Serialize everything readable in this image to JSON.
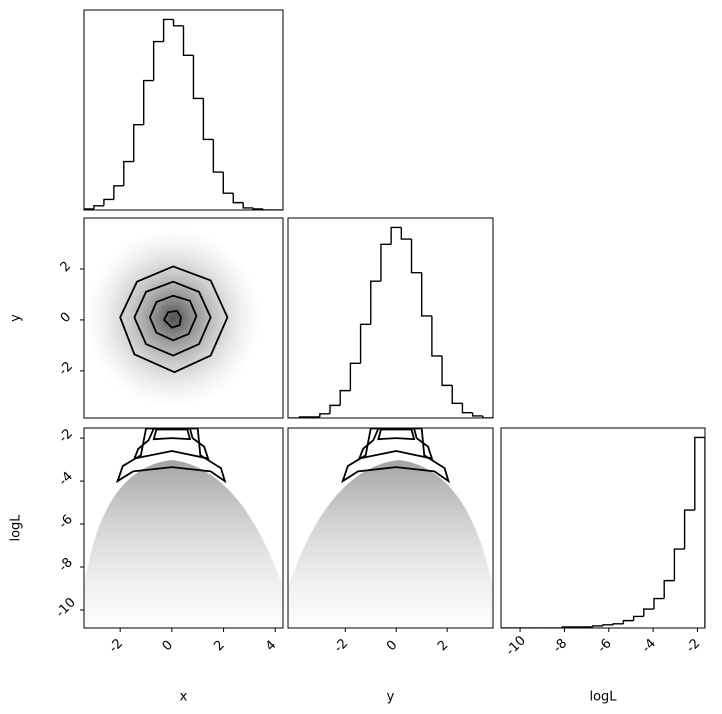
{
  "chart_data": [
    {
      "type": "histogram",
      "xlim": [
        -3.4,
        4.3
      ],
      "ylim": [
        0,
        190
      ],
      "bins": [
        -3.4,
        -3.015,
        -2.63,
        -2.245,
        -1.86,
        -1.475,
        -1.09,
        -0.705,
        -0.32,
        0.065,
        0.45,
        0.835,
        1.22,
        1.605,
        1.99,
        2.375,
        2.76,
        3.145,
        3.53,
        3.915,
        4.3
      ],
      "values": [
        1,
        4,
        10,
        23,
        46,
        81,
        123,
        160,
        181,
        175,
        147,
        106,
        67,
        36,
        16,
        7,
        2,
        1,
        0,
        0
      ],
      "color": "#000000"
    },
    {
      "type": "contour",
      "xlim": [
        -3.4,
        4.3
      ],
      "ylim": [
        -3.85,
        4.0
      ],
      "ylabel": "y",
      "yticks": [
        -2,
        0,
        2
      ],
      "color": "#000000",
      "contours": [
        {
          "x": [
            2.15,
            1.5,
            0.05,
            -1.35,
            -2.0,
            -1.45,
            0.1,
            1.5
          ],
          "y": [
            0.1,
            1.55,
            2.1,
            1.5,
            0.1,
            -1.35,
            -2.05,
            -1.4
          ]
        },
        {
          "x": [
            1.5,
            1.05,
            0.05,
            -1.0,
            -1.45,
            -1.0,
            0.05,
            1.05
          ],
          "y": [
            0.1,
            1.1,
            1.5,
            1.1,
            0.1,
            -0.95,
            -1.4,
            -0.95
          ]
        },
        {
          "x": [
            0.95,
            0.7,
            0.05,
            -0.6,
            -0.85,
            -0.6,
            0.05,
            0.65
          ],
          "y": [
            0.15,
            0.75,
            0.95,
            0.7,
            0.1,
            -0.5,
            -0.8,
            -0.55
          ]
        },
        {
          "x": [
            0.35,
            0.2,
            -0.15,
            -0.3,
            0.0,
            0.3
          ],
          "y": [
            0.1,
            0.35,
            0.3,
            0.0,
            -0.3,
            -0.2
          ]
        }
      ]
    },
    {
      "type": "histogram",
      "xlim": [
        -4.25,
        3.8
      ],
      "ylim": [
        0,
        190
      ],
      "bins": [
        -4.2,
        -3.8,
        -3.4,
        -3.0,
        -2.6,
        -2.2,
        -1.8,
        -1.4,
        -1.0,
        -0.6,
        -0.2,
        0.2,
        0.6,
        1.0,
        1.4,
        1.8,
        2.2,
        2.6,
        3.0,
        3.4,
        3.8
      ],
      "values": [
        0,
        1,
        1,
        4,
        12,
        26,
        52,
        89,
        130,
        165,
        181,
        170,
        138,
        97,
        59,
        31,
        14,
        5,
        2,
        0
      ],
      "color": "#000000"
    },
    {
      "type": "contour",
      "xlim": [
        -3.4,
        4.3
      ],
      "ylim": [
        -10.84,
        -1.53
      ],
      "xlabel": "x",
      "ylabel": "logL",
      "xticks": [
        -2,
        0,
        2,
        4
      ],
      "yticks": [
        -10,
        -8,
        -6,
        -4,
        -2
      ],
      "color": "#000000",
      "contours": [
        {
          "x": [
            -2.1,
            -1.5,
            0,
            1.5,
            2.05,
            1.9,
            1.1,
            1.0,
            -1.0,
            -1.2,
            -1.9
          ],
          "y": [
            -4.0,
            -3.55,
            -3.35,
            -3.55,
            -4.0,
            -3.4,
            -2.8,
            -1.55,
            -1.55,
            -2.8,
            -3.3
          ]
        },
        {
          "x": [
            -1.45,
            0,
            1.4,
            1.25,
            0.8,
            0.7,
            -0.7,
            -0.9,
            -1.3
          ],
          "y": [
            -2.95,
            -2.6,
            -2.95,
            -2.4,
            -2.0,
            -1.55,
            -1.55,
            -2.1,
            -2.5
          ]
        },
        {
          "x": [
            -0.7,
            0,
            0.7,
            0.6,
            -0.6
          ],
          "y": [
            -2.05,
            -2.0,
            -2.05,
            -1.6,
            -1.6
          ]
        }
      ]
    },
    {
      "type": "contour",
      "xlim": [
        -4.25,
        3.8
      ],
      "ylim": [
        -10.84,
        -1.53
      ],
      "xlabel": "y",
      "xticks": [
        -2,
        0,
        2
      ],
      "color": "#000000",
      "contours": [
        {
          "x": [
            -2.1,
            -1.5,
            0,
            1.5,
            2.05,
            1.9,
            1.1,
            1.0,
            -1.0,
            -1.2,
            -1.9
          ],
          "y": [
            -4.0,
            -3.55,
            -3.35,
            -3.55,
            -4.0,
            -3.4,
            -2.8,
            -1.55,
            -1.55,
            -2.8,
            -3.3
          ]
        },
        {
          "x": [
            -1.45,
            0,
            1.4,
            1.25,
            0.8,
            0.7,
            -0.7,
            -0.9,
            -1.3
          ],
          "y": [
            -2.95,
            -2.6,
            -2.95,
            -2.4,
            -2.0,
            -1.55,
            -1.55,
            -2.1,
            -2.5
          ]
        },
        {
          "x": [
            -0.7,
            0,
            0.7,
            0.6,
            -0.6
          ],
          "y": [
            -2.05,
            -2.0,
            -2.05,
            -1.6,
            -1.6
          ]
        }
      ]
    },
    {
      "type": "histogram",
      "xlim": [
        -10.86,
        -1.66
      ],
      "ylim": [
        0,
        190
      ],
      "xlabel": "logL",
      "xticks": [
        -10,
        -8,
        -6,
        -4,
        -2
      ],
      "bins": [
        -10.86,
        -10.4,
        -9.94,
        -9.48,
        -9.02,
        -8.56,
        -8.1,
        -7.64,
        -7.18,
        -6.72,
        -6.26,
        -5.8,
        -5.34,
        -4.88,
        -4.42,
        -3.96,
        -3.5,
        -3.04,
        -2.58,
        -2.12,
        -1.66
      ],
      "values": [
        0,
        0,
        0,
        0,
        0,
        0,
        1,
        1,
        1,
        2,
        3,
        4,
        7,
        11,
        18,
        28,
        45,
        75,
        112,
        181
      ],
      "color": "#000000"
    }
  ]
}
